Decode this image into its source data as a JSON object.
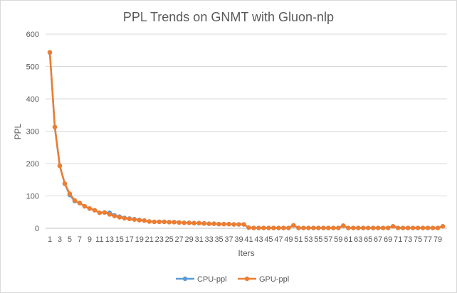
{
  "chart_data": {
    "type": "line",
    "title": "PPL Trends on GNMT with Gluon-nlp",
    "xlabel": "Iters",
    "ylabel": "PPL",
    "ylim": [
      0,
      600
    ],
    "yticks": [
      0,
      100,
      200,
      300,
      400,
      500,
      600
    ],
    "x": [
      1,
      2,
      3,
      4,
      5,
      6,
      7,
      8,
      9,
      10,
      11,
      12,
      13,
      14,
      15,
      16,
      17,
      18,
      19,
      20,
      21,
      22,
      23,
      24,
      25,
      26,
      27,
      28,
      29,
      30,
      31,
      32,
      33,
      34,
      35,
      36,
      37,
      38,
      39,
      40,
      41,
      42,
      43,
      44,
      45,
      46,
      47,
      48,
      49,
      50,
      51,
      52,
      53,
      54,
      55,
      56,
      57,
      58,
      59,
      60,
      61,
      62,
      63,
      64,
      65,
      66,
      67,
      68,
      69,
      70,
      71,
      72,
      73,
      74,
      75,
      76,
      77,
      78,
      79,
      80
    ],
    "xtick_labels": [
      1,
      3,
      5,
      7,
      9,
      11,
      13,
      15,
      17,
      19,
      21,
      23,
      25,
      27,
      29,
      31,
      33,
      35,
      37,
      39,
      41,
      43,
      45,
      47,
      49,
      51,
      53,
      55,
      57,
      59,
      61,
      63,
      65,
      67,
      69,
      71,
      73,
      75,
      77,
      79
    ],
    "grid": true,
    "legend_position": "bottom",
    "series": [
      {
        "name": "CPU-ppl",
        "color": "#5B9BD5",
        "values": [
          543,
          313,
          193,
          138,
          103,
          84,
          78,
          68,
          61,
          56,
          48,
          49,
          48,
          40,
          36,
          32,
          30,
          28,
          26,
          24,
          21,
          20,
          20,
          20,
          19,
          19,
          18,
          17,
          17,
          16,
          16,
          15,
          14,
          14,
          13,
          13,
          13,
          12,
          12,
          12,
          2,
          1,
          1,
          1,
          1,
          1,
          1,
          1,
          1,
          9,
          1,
          1,
          1,
          1,
          1,
          1,
          1,
          1,
          1,
          8,
          1,
          1,
          1,
          1,
          1,
          1,
          1,
          1,
          1,
          6,
          1,
          1,
          1,
          1,
          1,
          1,
          1,
          1,
          1,
          6
        ]
      },
      {
        "name": "GPU-ppl",
        "color": "#ED7D31",
        "values": [
          544,
          313,
          193,
          138,
          107,
          86,
          78,
          68,
          61,
          56,
          48,
          49,
          43,
          38,
          34,
          31,
          29,
          27,
          25,
          24,
          21,
          20,
          20,
          20,
          19,
          19,
          18,
          17,
          17,
          16,
          16,
          15,
          14,
          14,
          13,
          13,
          13,
          12,
          12,
          12,
          2,
          1,
          1,
          1,
          1,
          1,
          1,
          1,
          1,
          9,
          1,
          1,
          1,
          1,
          1,
          1,
          1,
          1,
          1,
          8,
          1,
          1,
          1,
          1,
          1,
          1,
          1,
          1,
          1,
          6,
          1,
          1,
          1,
          1,
          1,
          1,
          1,
          1,
          1,
          6
        ]
      }
    ]
  }
}
